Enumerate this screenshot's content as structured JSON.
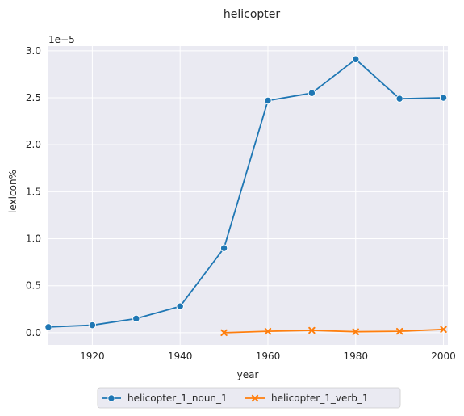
{
  "chart_data": {
    "type": "line",
    "title": "helicopter",
    "xlabel": "year",
    "ylabel": "lexicon%",
    "y_scale_label": "1e−5",
    "xlim": [
      1910,
      2001
    ],
    "ylim": [
      -0.13,
      3.05
    ],
    "x_ticks": [
      1920,
      1940,
      1960,
      1980,
      2000
    ],
    "y_ticks": [
      0.0,
      0.5,
      1.0,
      1.5,
      2.0,
      2.5,
      3.0
    ],
    "y_tick_labels": [
      "0.0",
      "0.5",
      "1.0",
      "1.5",
      "2.0",
      "2.5",
      "3.0"
    ],
    "grid": true,
    "legend_position": "bottom-center",
    "series": [
      {
        "name": "helicopter_1_noun_1",
        "color": "#1f77b4",
        "marker": "circle",
        "x": [
          1910,
          1920,
          1930,
          1940,
          1950,
          1960,
          1970,
          1980,
          1990,
          2000
        ],
        "y": [
          0.06,
          0.08,
          0.15,
          0.28,
          0.9,
          2.47,
          2.55,
          2.91,
          2.49,
          2.5
        ]
      },
      {
        "name": "helicopter_1_verb_1",
        "color": "#ff7f0e",
        "marker": "x",
        "x": [
          1950,
          1960,
          1970,
          1980,
          1990,
          2000
        ],
        "y": [
          0.0,
          0.015,
          0.025,
          0.01,
          0.015,
          0.035
        ]
      }
    ]
  }
}
